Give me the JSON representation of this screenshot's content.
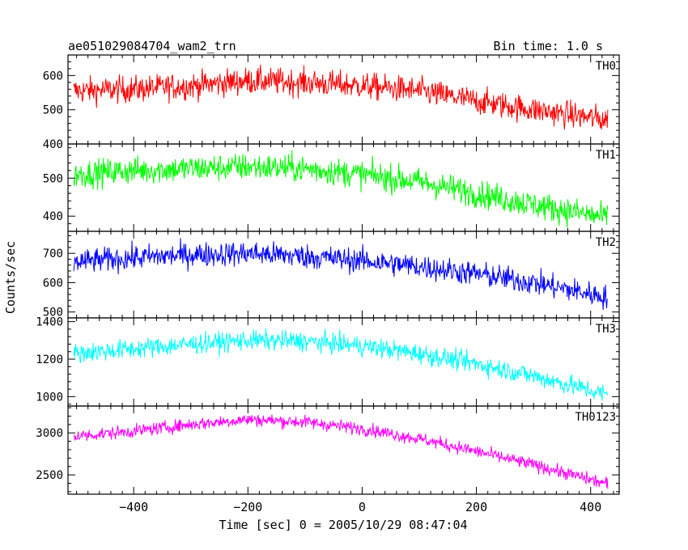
{
  "header": {
    "title": "ae051029084704_wam2_trn",
    "bin_time": "Bin time: 1.0 s"
  },
  "chart_data": {
    "type": "line",
    "title": "ae051029084704_wam2_trn",
    "xlabel": "Time [sec] 0 = 2005/10/29 08:47:04",
    "ylabel": "Counts/sec",
    "xlim": [
      -515,
      450
    ],
    "x_ticks": [
      -400,
      -200,
      0,
      200,
      400
    ],
    "x_tick_labels": [
      "−400",
      "−200",
      "0",
      "200",
      "400"
    ],
    "data_x_range": [
      -505,
      430
    ],
    "panels": [
      {
        "name": "TH0",
        "color": "#ff0000",
        "ylim": [
          400,
          660
        ],
        "ticks": [
          400,
          500,
          600
        ],
        "tick_labels": [
          "400",
          "500",
          "600"
        ],
        "trend_x": [
          -505,
          -400,
          -300,
          -200,
          -100,
          0,
          100,
          200,
          300,
          430
        ],
        "trend_y": [
          555,
          560,
          570,
          585,
          580,
          570,
          555,
          525,
          500,
          470
        ],
        "noise": 28
      },
      {
        "name": "TH1",
        "color": "#00ff00",
        "ylim": [
          360,
          590
        ],
        "ticks": [
          400,
          500
        ],
        "tick_labels": [
          "400",
          "500"
        ],
        "trend_x": [
          -505,
          -400,
          -300,
          -200,
          -100,
          0,
          100,
          200,
          300,
          430
        ],
        "trend_y": [
          510,
          520,
          525,
          530,
          525,
          510,
          490,
          460,
          430,
          395
        ],
        "noise": 26
      },
      {
        "name": "TH2",
        "color": "#0000ff",
        "ylim": [
          480,
          775
        ],
        "ticks": [
          500,
          600,
          700
        ],
        "tick_labels": [
          "500",
          "600",
          "700"
        ],
        "trend_x": [
          -505,
          -400,
          -300,
          -200,
          -100,
          0,
          100,
          200,
          300,
          430
        ],
        "trend_y": [
          670,
          685,
          695,
          700,
          690,
          675,
          655,
          630,
          600,
          550
        ],
        "noise": 30
      },
      {
        "name": "TH3",
        "color": "#00ffff",
        "ylim": [
          950,
          1420
        ],
        "ticks": [
          1000,
          1200,
          1400
        ],
        "tick_labels": [
          "1000",
          "1200",
          "1400"
        ],
        "trend_x": [
          -505,
          -400,
          -300,
          -200,
          -100,
          0,
          100,
          200,
          300,
          430
        ],
        "trend_y": [
          1230,
          1255,
          1280,
          1300,
          1295,
          1270,
          1230,
          1175,
          1110,
          1010
        ],
        "noise": 38
      },
      {
        "name": "TH0123",
        "color": "#ff00ff",
        "ylim": [
          2270,
          3320
        ],
        "ticks": [
          2500,
          3000
        ],
        "tick_labels": [
          "2500",
          "3000"
        ],
        "trend_x": [
          -505,
          -400,
          -300,
          -200,
          -100,
          0,
          100,
          200,
          300,
          430
        ],
        "trend_y": [
          2960,
          3020,
          3100,
          3160,
          3130,
          3050,
          2930,
          2780,
          2620,
          2390
        ],
        "noise": 55
      }
    ]
  }
}
